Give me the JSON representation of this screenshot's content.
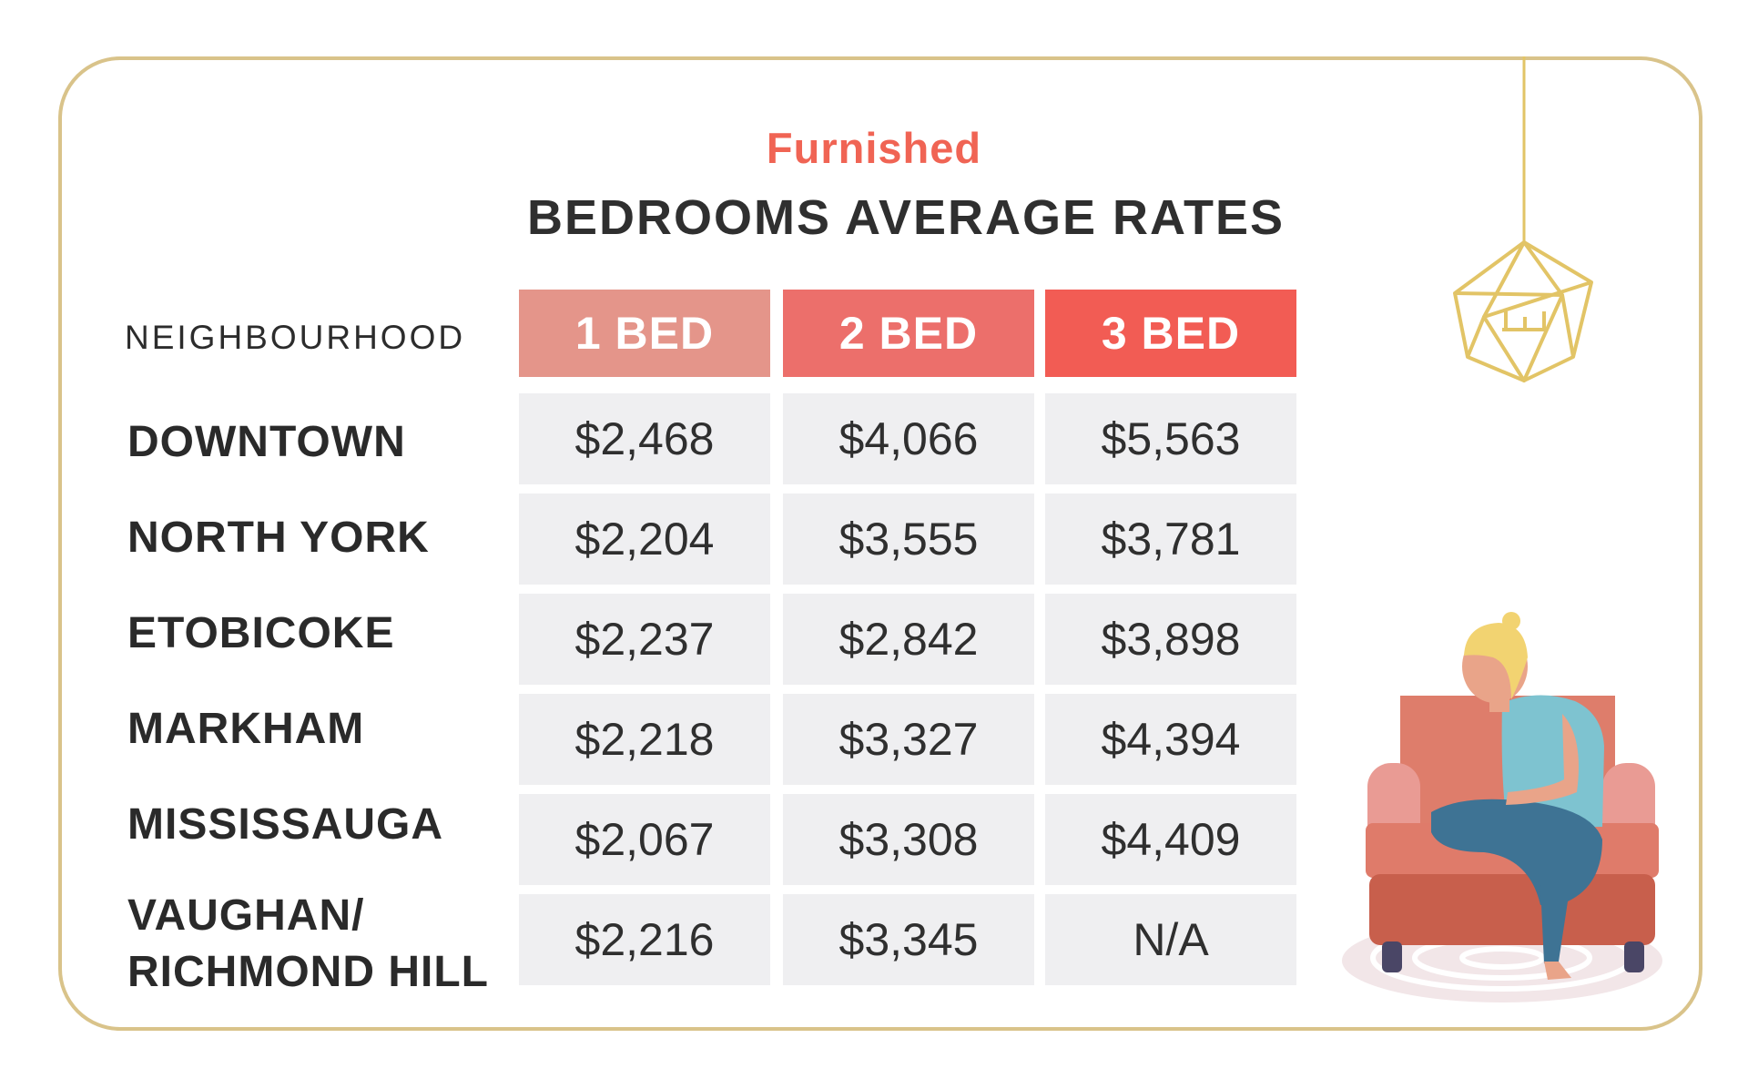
{
  "header": {
    "subtitle": "Furnished",
    "title": "BEDROOMS AVERAGE RATES"
  },
  "table": {
    "row_header_label": "NEIGHBOURHOOD",
    "columns": [
      {
        "label": "1 BED",
        "color": "#e4958a"
      },
      {
        "label": "2 BED",
        "color": "#ec6f6b"
      },
      {
        "label": "3 BED",
        "color": "#f25c54"
      }
    ],
    "rows": [
      {
        "label": "DOWNTOWN",
        "values": [
          "$2,468",
          "$4,066",
          "$5,563"
        ]
      },
      {
        "label": "NORTH YORK",
        "values": [
          "$2,204",
          "$3,555",
          "$3,781"
        ]
      },
      {
        "label": "ETOBICOKE",
        "values": [
          "$2,237",
          "$2,842",
          "$3,898"
        ]
      },
      {
        "label": "MARKHAM",
        "values": [
          "$2,218",
          "$3,327",
          "$4,394"
        ]
      },
      {
        "label": "MISSISSAUGA",
        "values": [
          "$2,067",
          "$3,308",
          "$4,409"
        ]
      },
      {
        "label": "VAUGHAN/\nRICHMOND HILL",
        "values": [
          "$2,216",
          "$3,345",
          "N/A"
        ]
      }
    ]
  },
  "chart_data": {
    "type": "table",
    "title": "BEDROOMS AVERAGE RATES",
    "subtitle": "Furnished",
    "row_header": "NEIGHBOURHOOD",
    "columns": [
      "1 BED",
      "2 BED",
      "3 BED"
    ],
    "rows": [
      "DOWNTOWN",
      "NORTH YORK",
      "ETOBICOKE",
      "MARKHAM",
      "MISSISSAUGA",
      "VAUGHAN/ RICHMOND HILL"
    ],
    "values": [
      [
        2468,
        4066,
        5563
      ],
      [
        2204,
        3555,
        3781
      ],
      [
        2237,
        2842,
        3898
      ],
      [
        2218,
        3327,
        4394
      ],
      [
        2067,
        3308,
        4409
      ],
      [
        2216,
        3345,
        null
      ]
    ]
  },
  "colors": {
    "accent": "#f06454",
    "border": "#d9c38a",
    "cell_background": "#efeff1",
    "text": "#2f2f2f"
  },
  "illustrations": [
    "chandelier-illustration",
    "person-on-armchair-illustration"
  ]
}
